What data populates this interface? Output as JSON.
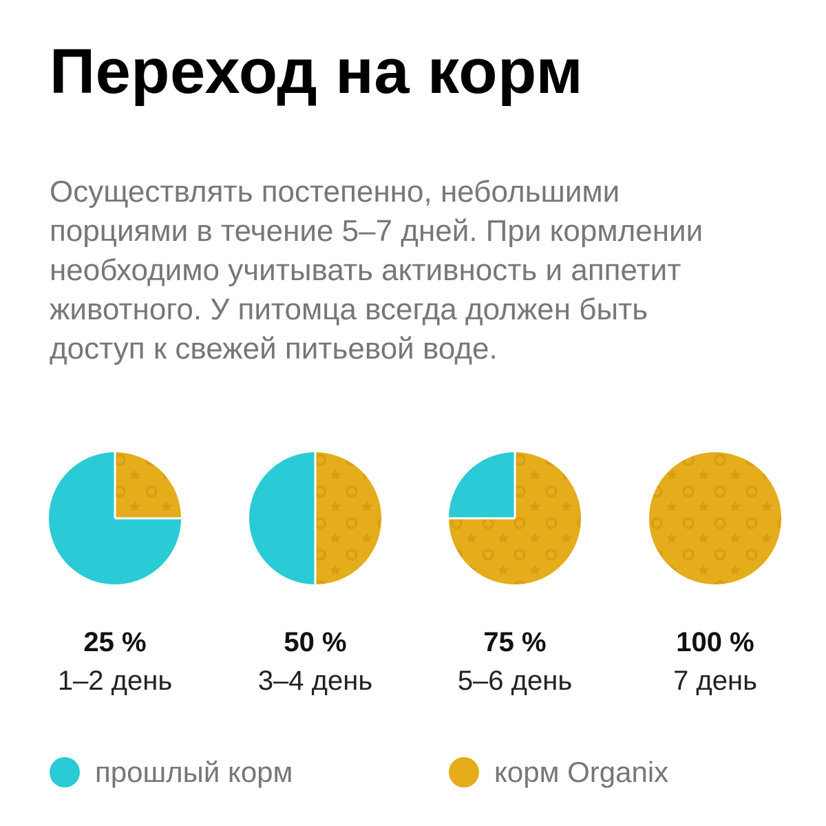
{
  "title": "Переход на корм",
  "intro_lines": [
    "Осуществлять постепенно, небольшими",
    "порциями в течение 5–7 дней. При кормлении",
    "необходимо учитывать активность и аппетит",
    "животного. У питомца всегда должен быть",
    "доступ к свежей питьевой воде."
  ],
  "colors": {
    "old_food": "#2ACAD6",
    "new_food": "#E5AC1B",
    "pattern": "#D89E12"
  },
  "chart_data": {
    "type": "pie",
    "series": [
      {
        "name": "прошлый корм",
        "color": "#2ACAD6"
      },
      {
        "name": "корм Organix",
        "color": "#E5AC1B"
      }
    ],
    "pies": [
      {
        "percent_label": "25 %",
        "day_label": "1–2 день",
        "new_food_percent": 25,
        "old_food_percent": 75
      },
      {
        "percent_label": "50 %",
        "day_label": "3–4 день",
        "new_food_percent": 50,
        "old_food_percent": 50
      },
      {
        "percent_label": "75 %",
        "day_label": "5–6 день",
        "new_food_percent": 75,
        "old_food_percent": 25
      },
      {
        "percent_label": "100 %",
        "day_label": "7 день",
        "new_food_percent": 100,
        "old_food_percent": 0
      }
    ]
  },
  "legend": [
    {
      "label": "прошлый корм",
      "color": "#2ACAD6"
    },
    {
      "label": "корм Organix",
      "color": "#E5AC1B"
    }
  ]
}
